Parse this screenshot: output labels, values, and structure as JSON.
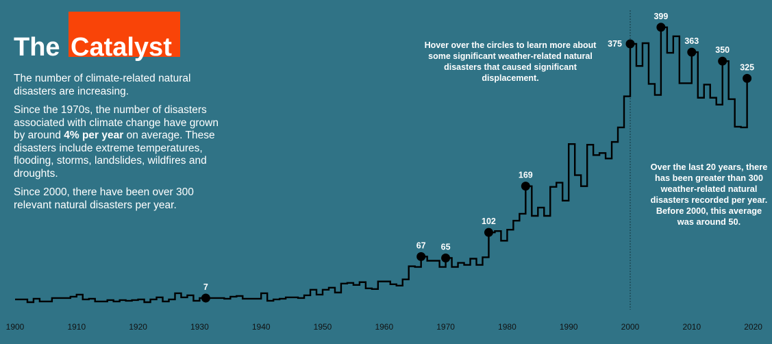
{
  "title": {
    "part1": "The",
    "part2": "Catalyst"
  },
  "intro": {
    "p1": "The number of climate-related natural disasters are increasing.",
    "p2_before": "Since the 1970s, the number of disasters associated with climate change have grown by around ",
    "p2_bold": "4% per year",
    "p2_after": " on average. These disasters include extreme temperatures, flooding, storms, landslides, wildfires and droughts.",
    "p3": "Since 2000, there have been over 300 relevant natural disasters per year."
  },
  "hover_note": "Hover over the circles to learn more about some significant weather-related natural disasters that caused significant displacement.",
  "side_note": "Over the last 20 years, there has been greater than 300 weather-related natural disasters recorded per year. Before 2000, this average was around 50.",
  "colors": {
    "background": "#307386",
    "accent": "#f94408",
    "line": "#000000"
  },
  "chart_data": {
    "type": "line",
    "style": "step",
    "title": "The Catalyst",
    "xlabel": "",
    "ylabel": "",
    "xlim": [
      1900,
      2020
    ],
    "ylim": [
      0,
      410
    ],
    "grid": false,
    "x_ticks": [
      1900,
      1910,
      1920,
      1930,
      1940,
      1950,
      1960,
      1970,
      1980,
      1990,
      2000,
      2010,
      2020
    ],
    "reference_line_year": 2000,
    "series": [
      {
        "name": "Climate-related natural disasters",
        "x": [
          1900,
          1901,
          1902,
          1903,
          1904,
          1905,
          1906,
          1907,
          1908,
          1909,
          1910,
          1911,
          1912,
          1913,
          1914,
          1915,
          1916,
          1917,
          1918,
          1919,
          1920,
          1921,
          1922,
          1923,
          1924,
          1925,
          1926,
          1927,
          1928,
          1929,
          1930,
          1931,
          1932,
          1933,
          1934,
          1935,
          1936,
          1937,
          1938,
          1939,
          1940,
          1941,
          1942,
          1943,
          1944,
          1945,
          1946,
          1947,
          1948,
          1949,
          1950,
          1951,
          1952,
          1953,
          1954,
          1955,
          1956,
          1957,
          1958,
          1959,
          1960,
          1961,
          1962,
          1963,
          1964,
          1965,
          1966,
          1967,
          1968,
          1969,
          1970,
          1971,
          1972,
          1973,
          1974,
          1975,
          1976,
          1977,
          1978,
          1979,
          1980,
          1981,
          1982,
          1983,
          1984,
          1985,
          1986,
          1987,
          1988,
          1989,
          1990,
          1991,
          1992,
          1993,
          1994,
          1995,
          1996,
          1997,
          1998,
          1999,
          2000,
          2001,
          2002,
          2003,
          2004,
          2005,
          2006,
          2007,
          2008,
          2009,
          2010,
          2011,
          2012,
          2013,
          2014,
          2015,
          2016,
          2017,
          2018,
          2019
        ],
        "values": [
          5,
          5,
          1,
          6,
          2,
          2,
          7,
          7,
          7,
          9,
          12,
          5,
          6,
          2,
          2,
          4,
          2,
          4,
          3,
          4,
          5,
          1,
          5,
          8,
          2,
          5,
          14,
          8,
          11,
          3,
          7,
          7,
          7,
          7,
          6,
          9,
          10,
          6,
          6,
          6,
          14,
          3,
          5,
          6,
          8,
          8,
          7,
          11,
          19,
          12,
          19,
          22,
          15,
          28,
          29,
          26,
          30,
          21,
          20,
          31,
          31,
          27,
          25,
          34,
          53,
          52,
          67,
          61,
          61,
          52,
          65,
          52,
          58,
          55,
          64,
          55,
          66,
          102,
          104,
          90,
          106,
          119,
          129,
          169,
          126,
          138,
          126,
          168,
          174,
          148,
          230,
          185,
          169,
          229,
          214,
          217,
          209,
          233,
          254,
          299,
          375,
          343,
          376,
          317,
          301,
          399,
          362,
          386,
          318,
          318,
          363,
          297,
          316,
          297,
          287,
          350,
          295,
          255,
          254,
          325
        ]
      }
    ],
    "highlighted_points": [
      {
        "year": 1931,
        "value": 7,
        "label": "7"
      },
      {
        "year": 1966,
        "value": 67,
        "label": "67"
      },
      {
        "year": 1970,
        "value": 65,
        "label": "65"
      },
      {
        "year": 1977,
        "value": 102,
        "label": "102"
      },
      {
        "year": 1983,
        "value": 169,
        "label": "169"
      },
      {
        "year": 2000,
        "value": 375,
        "label": "375"
      },
      {
        "year": 2005,
        "value": 399,
        "label": "399"
      },
      {
        "year": 2010,
        "value": 363,
        "label": "363"
      },
      {
        "year": 2015,
        "value": 350,
        "label": "350"
      },
      {
        "year": 2019,
        "value": 325,
        "label": "325"
      }
    ]
  }
}
